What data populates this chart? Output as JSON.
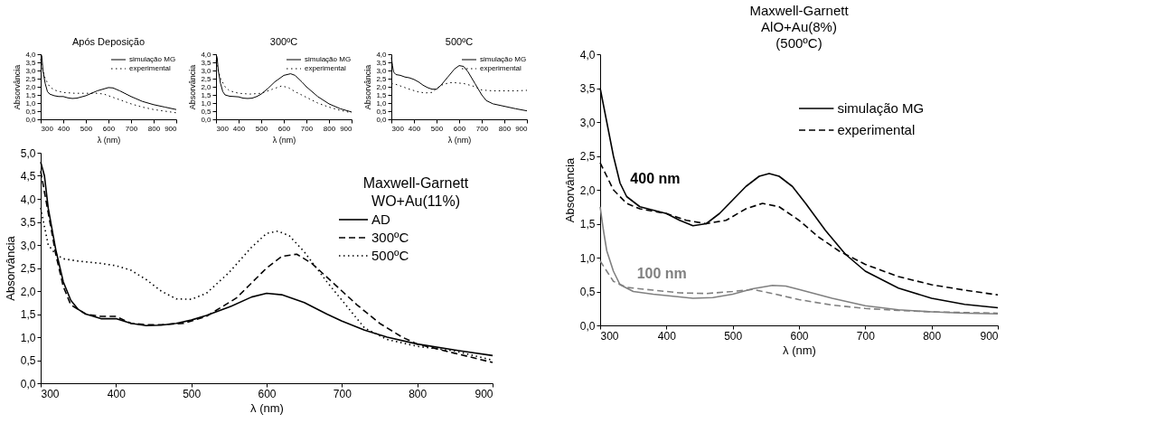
{
  "chart_data": [
    {
      "type": "line",
      "title": "Após Deposição",
      "xlabel": "λ (nm)",
      "ylabel": "Absorvância",
      "legend": "top right",
      "xlim": [
        300,
        900
      ],
      "ylim": [
        0,
        4
      ],
      "xticks": [
        300,
        400,
        500,
        600,
        700,
        800,
        900
      ],
      "yticks": [
        {
          "value": 0,
          "label": "0,0"
        },
        {
          "value": 0.5,
          "label": "0,5"
        },
        {
          "value": 1,
          "label": "1,0"
        },
        {
          "value": 1.5,
          "label": "1,5"
        },
        {
          "value": 2,
          "label": "2,0"
        },
        {
          "value": 2.5,
          "label": "2,5"
        },
        {
          "value": 3,
          "label": "3,0"
        },
        {
          "value": 3.5,
          "label": "3,5"
        },
        {
          "value": 4,
          "label": "4,0"
        }
      ],
      "series": [
        {
          "name": "simulação MG",
          "color": "#000000",
          "line_style": "solid",
          "x": [
            300,
            305,
            310,
            320,
            330,
            340,
            360,
            380,
            400,
            420,
            440,
            460,
            500,
            550,
            600,
            620,
            650,
            700,
            750,
            800,
            850,
            900
          ],
          "values": [
            4.0,
            3.9,
            3.0,
            2.2,
            1.7,
            1.55,
            1.45,
            1.4,
            1.4,
            1.32,
            1.28,
            1.3,
            1.45,
            1.75,
            1.95,
            1.93,
            1.75,
            1.4,
            1.1,
            0.9,
            0.75,
            0.6
          ]
        },
        {
          "name": "experimental",
          "color": "#000000",
          "line_style": "dotted",
          "x": [
            300,
            310,
            320,
            340,
            360,
            400,
            450,
            500,
            550,
            580,
            600,
            650,
            700,
            750,
            800,
            850,
            900
          ],
          "values": [
            3.7,
            3.0,
            2.5,
            2.0,
            1.8,
            1.65,
            1.6,
            1.6,
            1.6,
            1.55,
            1.45,
            1.2,
            0.95,
            0.75,
            0.6,
            0.5,
            0.4
          ]
        }
      ]
    },
    {
      "type": "line",
      "title": "300ºC",
      "xlabel": "λ (nm)",
      "ylabel": "Absorvância",
      "legend": "top right",
      "xlim": [
        300,
        900
      ],
      "ylim": [
        0,
        4
      ],
      "xticks": [
        300,
        400,
        500,
        600,
        700,
        800,
        900
      ],
      "yticks": [
        {
          "value": 0,
          "label": "0,0"
        },
        {
          "value": 0.5,
          "label": "0,5"
        },
        {
          "value": 1,
          "label": "1,0"
        },
        {
          "value": 1.5,
          "label": "1,5"
        },
        {
          "value": 2,
          "label": "2,0"
        },
        {
          "value": 2.5,
          "label": "2,5"
        },
        {
          "value": 3,
          "label": "3,0"
        },
        {
          "value": 3.5,
          "label": "3,5"
        },
        {
          "value": 4,
          "label": "4,0"
        }
      ],
      "series": [
        {
          "name": "simulação MG",
          "color": "#000000",
          "line_style": "solid",
          "x": [
            300,
            305,
            310,
            320,
            330,
            340,
            360,
            380,
            400,
            420,
            440,
            460,
            480,
            500,
            530,
            560,
            600,
            630,
            650,
            680,
            700,
            750,
            800,
            850,
            900
          ],
          "values": [
            4.0,
            3.8,
            3.0,
            2.2,
            1.7,
            1.5,
            1.42,
            1.4,
            1.38,
            1.3,
            1.28,
            1.3,
            1.4,
            1.55,
            1.9,
            2.3,
            2.7,
            2.8,
            2.7,
            2.3,
            2.0,
            1.4,
            0.95,
            0.65,
            0.45
          ]
        },
        {
          "name": "experimental",
          "color": "#000000",
          "line_style": "dotted",
          "x": [
            300,
            310,
            320,
            340,
            360,
            400,
            450,
            500,
            550,
            590,
            620,
            650,
            700,
            750,
            800,
            850,
            900
          ],
          "values": [
            3.6,
            3.0,
            2.5,
            2.0,
            1.75,
            1.6,
            1.55,
            1.6,
            1.85,
            2.05,
            1.95,
            1.7,
            1.35,
            1.0,
            0.75,
            0.55,
            0.4
          ]
        }
      ]
    },
    {
      "type": "line",
      "title": "500ºC",
      "xlabel": "λ (nm)",
      "ylabel": "Absorvância",
      "legend": "top right",
      "xlim": [
        300,
        900
      ],
      "ylim": [
        0,
        4
      ],
      "xticks": [
        300,
        400,
        500,
        600,
        700,
        800,
        900
      ],
      "yticks": [
        {
          "value": 0,
          "label": "0,0"
        },
        {
          "value": 0.5,
          "label": "0,5"
        },
        {
          "value": 1,
          "label": "1,0"
        },
        {
          "value": 1.5,
          "label": "1,5"
        },
        {
          "value": 2,
          "label": "2,0"
        },
        {
          "value": 2.5,
          "label": "2,5"
        },
        {
          "value": 3,
          "label": "3,0"
        },
        {
          "value": 3.5,
          "label": "3,5"
        },
        {
          "value": 4,
          "label": "4,0"
        }
      ],
      "series": [
        {
          "name": "simulação MG",
          "color": "#000000",
          "line_style": "solid",
          "x": [
            300,
            305,
            310,
            320,
            340,
            360,
            380,
            400,
            420,
            440,
            460,
            480,
            500,
            520,
            550,
            580,
            600,
            620,
            640,
            670,
            700,
            720,
            750,
            800,
            850,
            900
          ],
          "values": [
            3.8,
            3.3,
            2.9,
            2.75,
            2.7,
            2.6,
            2.55,
            2.45,
            2.3,
            2.1,
            1.95,
            1.85,
            1.85,
            2.1,
            2.6,
            3.1,
            3.3,
            3.25,
            2.9,
            2.2,
            1.5,
            1.15,
            0.95,
            0.8,
            0.65,
            0.52
          ]
        },
        {
          "name": "experimental",
          "color": "#000000",
          "line_style": "dotted",
          "x": [
            300,
            320,
            350,
            380,
            420,
            450,
            480,
            500,
            530,
            560,
            580,
            620,
            660,
            700,
            750,
            800,
            850,
            900
          ],
          "values": [
            2.2,
            2.15,
            2.0,
            1.85,
            1.68,
            1.62,
            1.65,
            1.9,
            2.15,
            2.25,
            2.25,
            2.2,
            2.05,
            1.8,
            1.75,
            1.75,
            1.75,
            1.78
          ]
        }
      ]
    },
    {
      "type": "line",
      "xlabel": "λ (nm)",
      "ylabel": "Absorvância",
      "legend_title": "Maxwell-Garnett\nWO+Au(11%)",
      "legend": "top right",
      "xlim": [
        300,
        900
      ],
      "ylim": [
        0,
        5
      ],
      "xticks": [
        300,
        400,
        500,
        600,
        700,
        800,
        900
      ],
      "yticks": [
        {
          "value": 0,
          "label": "0,0"
        },
        {
          "value": 0.5,
          "label": "0,5"
        },
        {
          "value": 1,
          "label": "1,0"
        },
        {
          "value": 1.5,
          "label": "1,5"
        },
        {
          "value": 2,
          "label": "2,0"
        },
        {
          "value": 2.5,
          "label": "2,5"
        },
        {
          "value": 3,
          "label": "3,0"
        },
        {
          "value": 3.5,
          "label": "3,5"
        },
        {
          "value": 4,
          "label": "4,0"
        },
        {
          "value": 4.5,
          "label": "4,5"
        },
        {
          "value": 5,
          "label": "5,0"
        }
      ],
      "series": [
        {
          "name": "AD",
          "color": "#000000",
          "line_style": "solid",
          "x": [
            300,
            305,
            310,
            320,
            330,
            340,
            350,
            360,
            380,
            400,
            420,
            440,
            460,
            480,
            500,
            520,
            550,
            580,
            600,
            620,
            650,
            680,
            700,
            730,
            760,
            800,
            850,
            900
          ],
          "values": [
            4.8,
            4.5,
            3.8,
            2.9,
            2.2,
            1.8,
            1.6,
            1.5,
            1.4,
            1.4,
            1.3,
            1.25,
            1.26,
            1.3,
            1.37,
            1.47,
            1.65,
            1.87,
            1.95,
            1.92,
            1.75,
            1.5,
            1.35,
            1.15,
            1.0,
            0.85,
            0.72,
            0.6
          ]
        },
        {
          "name": "300ºC",
          "color": "#000000",
          "line_style": "dashed",
          "x": [
            300,
            310,
            320,
            330,
            340,
            360,
            380,
            400,
            420,
            440,
            460,
            490,
            520,
            560,
            600,
            620,
            640,
            660,
            680,
            700,
            720,
            750,
            780,
            800,
            850,
            900
          ],
          "values": [
            4.6,
            3.7,
            2.8,
            2.1,
            1.7,
            1.5,
            1.45,
            1.45,
            1.3,
            1.27,
            1.27,
            1.3,
            1.45,
            1.85,
            2.5,
            2.75,
            2.8,
            2.6,
            2.3,
            2.0,
            1.7,
            1.3,
            1.0,
            0.85,
            0.65,
            0.45
          ]
        },
        {
          "name": "500ºC",
          "color": "#000000",
          "line_style": "dotted",
          "x": [
            300,
            310,
            320,
            330,
            350,
            380,
            400,
            420,
            440,
            460,
            480,
            500,
            520,
            550,
            580,
            600,
            615,
            630,
            650,
            680,
            700,
            730,
            760,
            800,
            850,
            900
          ],
          "values": [
            3.8,
            3.0,
            2.8,
            2.7,
            2.65,
            2.6,
            2.55,
            2.45,
            2.25,
            2.0,
            1.83,
            1.82,
            1.95,
            2.4,
            2.95,
            3.25,
            3.3,
            3.2,
            2.85,
            2.2,
            1.8,
            1.2,
            0.95,
            0.8,
            0.7,
            0.5
          ]
        }
      ]
    },
    {
      "type": "line",
      "title": "Maxwell-Garnett\nAlO+Au(8%)\n(500ºC)",
      "xlabel": "λ (nm)",
      "ylabel": "Absorvância",
      "legend": "top right",
      "xlim": [
        300,
        900
      ],
      "ylim": [
        0,
        4
      ],
      "xticks": [
        300,
        400,
        500,
        600,
        700,
        800,
        900
      ],
      "yticks": [
        {
          "value": 0,
          "label": "0,0"
        },
        {
          "value": 0.5,
          "label": "0,5"
        },
        {
          "value": 1,
          "label": "1,0"
        },
        {
          "value": 1.5,
          "label": "1,5"
        },
        {
          "value": 2,
          "label": "2,0"
        },
        {
          "value": 2.5,
          "label": "2,5"
        },
        {
          "value": 3,
          "label": "3,0"
        },
        {
          "value": 3.5,
          "label": "3,5"
        },
        {
          "value": 4,
          "label": "4,0"
        }
      ],
      "annotations": [
        "400 nm",
        "100 nm"
      ],
      "series": [
        {
          "name": "simulação MG",
          "color": "#000000",
          "line_style": "solid",
          "x": [
            300,
            310,
            320,
            330,
            340,
            360,
            380,
            400,
            420,
            440,
            460,
            480,
            500,
            520,
            540,
            555,
            570,
            590,
            610,
            640,
            670,
            700,
            750,
            800,
            850,
            900
          ],
          "values": [
            3.5,
            3.0,
            2.5,
            2.1,
            1.9,
            1.75,
            1.7,
            1.65,
            1.55,
            1.47,
            1.5,
            1.65,
            1.85,
            2.05,
            2.2,
            2.24,
            2.2,
            2.05,
            1.8,
            1.4,
            1.05,
            0.8,
            0.55,
            0.4,
            0.31,
            0.26
          ]
        },
        {
          "name": "experimental",
          "color": "#000000",
          "line_style": "dashed",
          "x": [
            300,
            310,
            320,
            340,
            360,
            400,
            430,
            460,
            490,
            520,
            545,
            570,
            600,
            630,
            660,
            700,
            750,
            800,
            850,
            900
          ],
          "values": [
            2.4,
            2.2,
            2.0,
            1.8,
            1.72,
            1.65,
            1.55,
            1.5,
            1.55,
            1.72,
            1.8,
            1.75,
            1.55,
            1.3,
            1.1,
            0.9,
            0.72,
            0.6,
            0.52,
            0.45
          ]
        },
        {
          "color": "#808080",
          "line_style": "solid",
          "x": [
            300,
            305,
            310,
            320,
            330,
            350,
            380,
            400,
            440,
            470,
            500,
            530,
            560,
            580,
            600,
            650,
            700,
            750,
            800,
            850,
            900
          ],
          "values": [
            1.75,
            1.4,
            1.1,
            0.8,
            0.6,
            0.5,
            0.46,
            0.44,
            0.4,
            0.41,
            0.46,
            0.54,
            0.59,
            0.58,
            0.53,
            0.4,
            0.29,
            0.23,
            0.2,
            0.18,
            0.17
          ]
        },
        {
          "color": "#808080",
          "line_style": "dashed",
          "x": [
            300,
            310,
            320,
            340,
            380,
            420,
            460,
            500,
            530,
            560,
            600,
            650,
            700,
            750,
            800,
            850,
            900
          ],
          "values": [
            0.95,
            0.8,
            0.65,
            0.56,
            0.52,
            0.48,
            0.47,
            0.5,
            0.53,
            0.47,
            0.38,
            0.3,
            0.25,
            0.22,
            0.2,
            0.19,
            0.18
          ]
        }
      ]
    }
  ]
}
